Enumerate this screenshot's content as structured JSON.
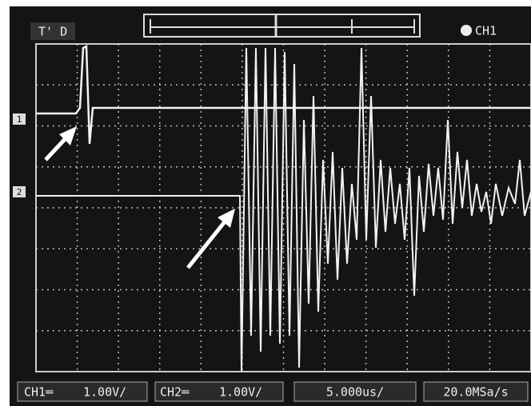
{
  "header": {
    "trigger_status": "T' D",
    "channel": "CH1"
  },
  "markers": {
    "ch1": "1",
    "ch2": "2"
  },
  "status_bar": {
    "ch1_label": "CH1═",
    "ch1_scale": "1.00V/",
    "ch2_label": "CH2═",
    "ch2_scale": "1.00V/",
    "timebase": "5.000us/",
    "sample_rate": "20.0MSa/s"
  }
}
